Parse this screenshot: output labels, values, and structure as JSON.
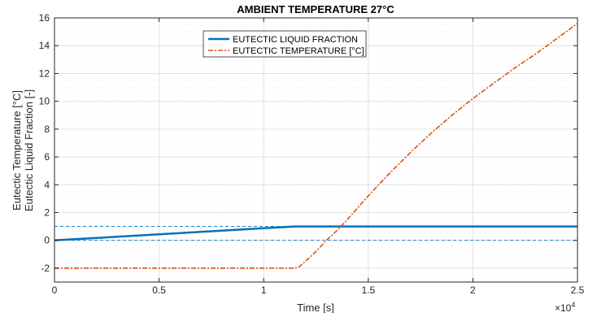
{
  "chart_data": {
    "type": "line",
    "title": "AMBIENT TEMPERATURE 27°C",
    "xlabel": "Time [s]",
    "ylabel_lines": [
      "Eutectic Temperature [°C]",
      "Eutectic Liquid Fraction [-]"
    ],
    "x_exponent_label": "×10",
    "x_exponent_power": "4",
    "xlim": [
      0,
      2.5
    ],
    "ylim": [
      -3,
      16
    ],
    "x_ticks": [
      0,
      0.5,
      1,
      1.5,
      2,
      2.5
    ],
    "x_tick_labels": [
      "0",
      "0.5",
      "1",
      "1.5",
      "2",
      "2.5"
    ],
    "y_ticks": [
      -2,
      0,
      2,
      4,
      6,
      8,
      10,
      12,
      14,
      16
    ],
    "y_tick_labels": [
      "-2",
      "0",
      "2",
      "4",
      "6",
      "8",
      "10",
      "12",
      "14",
      "16"
    ],
    "grid": true,
    "minor_grid": true,
    "legend_position": "top-center",
    "series": [
      {
        "name": "EUTECTIC LIQUID FRACTION",
        "color": "#0072BD",
        "style": "solid",
        "x": [
          0,
          0.2,
          0.4,
          0.6,
          0.8,
          1.0,
          1.15,
          1.5,
          2.0,
          2.5
        ],
        "y": [
          0,
          0.17,
          0.35,
          0.52,
          0.7,
          0.87,
          1.0,
          1.0,
          1.0,
          1.0
        ]
      },
      {
        "name": "EUTECTIC TEMPERATURE [°C]",
        "color": "#D95319",
        "style": "dashdot",
        "x": [
          0,
          0.5,
          1.0,
          1.15,
          1.17,
          1.2,
          1.25,
          1.3,
          1.35,
          1.4,
          1.5,
          1.6,
          1.7,
          1.8,
          1.9,
          2.0,
          2.1,
          2.2,
          2.3,
          2.4,
          2.5
        ],
        "y": [
          -2,
          -2,
          -2,
          -2,
          -1.9,
          -1.5,
          -0.8,
          0.0,
          0.7,
          1.5,
          3.2,
          4.8,
          6.3,
          7.7,
          9.0,
          10.2,
          11.3,
          12.4,
          13.4,
          14.5,
          15.6
        ]
      }
    ],
    "reference_lines": [
      {
        "y": 1,
        "color": "#0072BD",
        "style": "dashed"
      },
      {
        "y": 0,
        "color": "#0072BD",
        "style": "dashed"
      }
    ]
  }
}
